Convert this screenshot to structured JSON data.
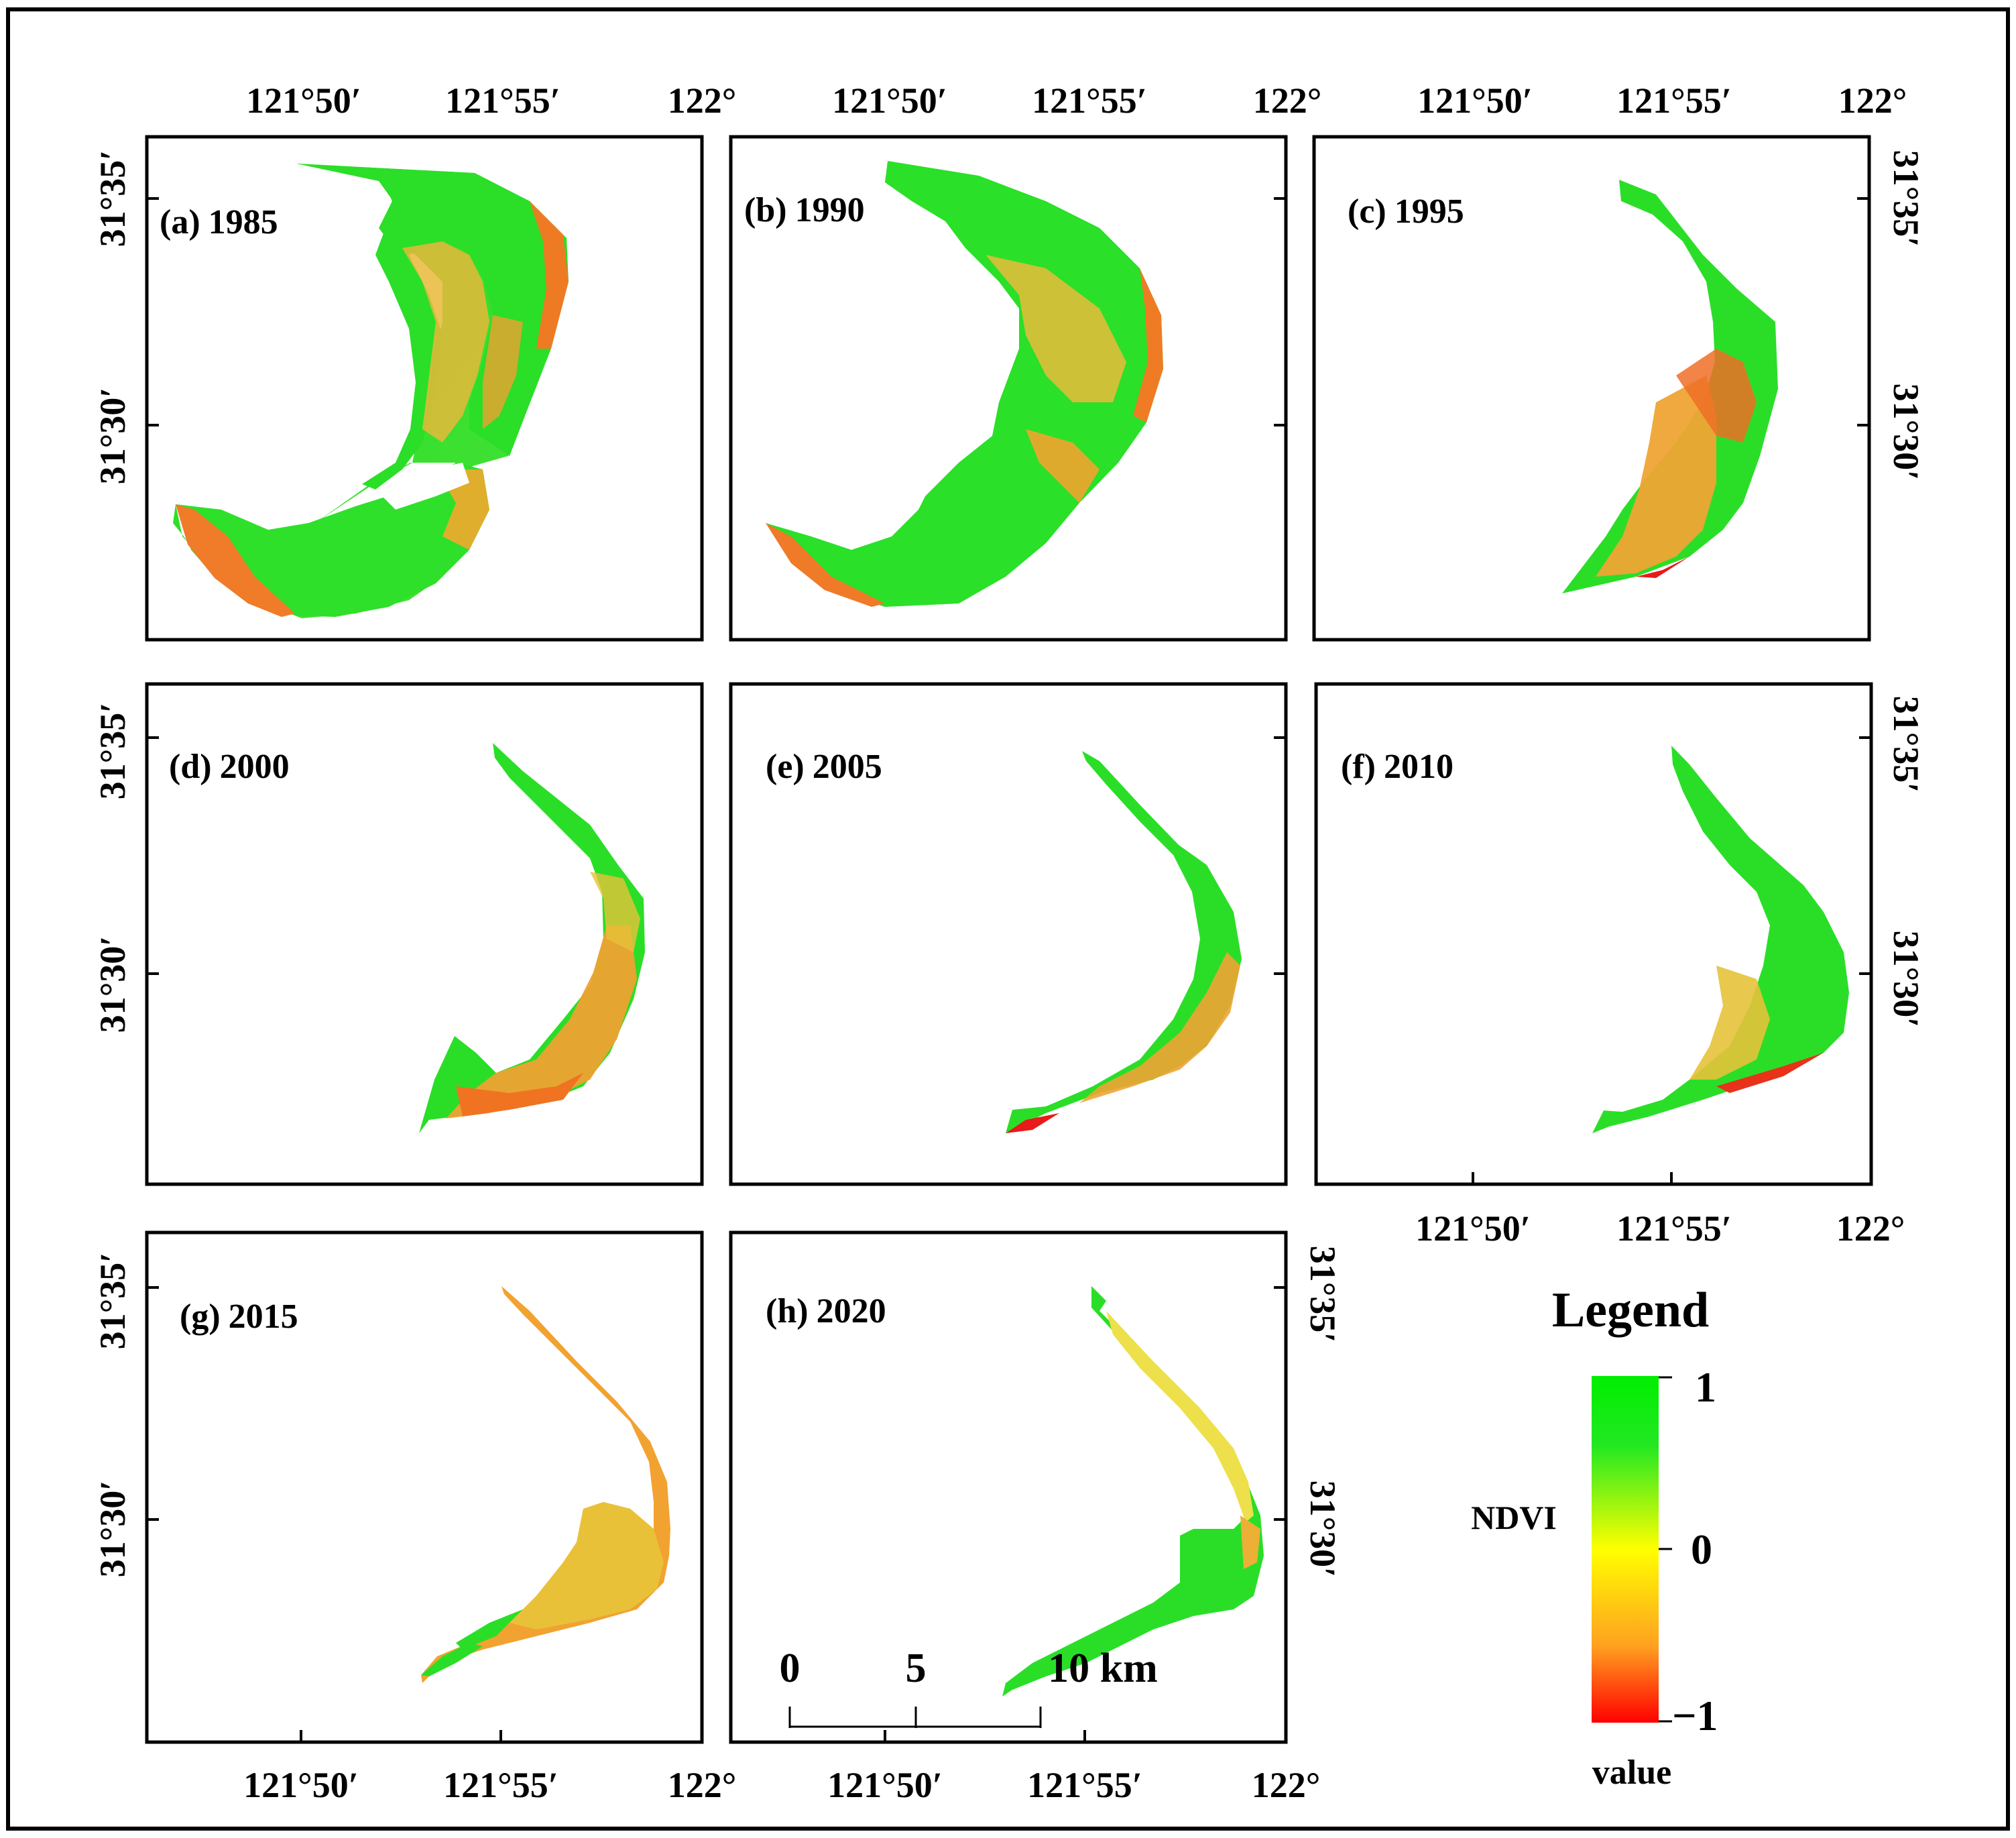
{
  "legend": {
    "title": "Legend",
    "variable": "NDVI",
    "max_label": "1",
    "mid_label": "0",
    "min_label": "−1",
    "unit_label": "value",
    "colors": {
      "high": "#00ee00",
      "mid": "#ffff00",
      "low": "#ff0000"
    }
  },
  "scale_bar": {
    "labels": [
      "0",
      "5",
      "10 km"
    ]
  },
  "axes": {
    "lon_labels": [
      "121°50′",
      "121°55′",
      "122°"
    ],
    "lat_labels": [
      "31°35′",
      "31°30′"
    ]
  },
  "panels": [
    {
      "letter": "(a)",
      "year": "1985"
    },
    {
      "letter": "(b)",
      "year": "1990"
    },
    {
      "letter": "(c)",
      "year": "1995"
    },
    {
      "letter": "(d)",
      "year": "2000"
    },
    {
      "letter": "(e)",
      "year": "2005"
    },
    {
      "letter": "(f)",
      "year": "2010"
    },
    {
      "letter": "(g)",
      "year": "2015"
    },
    {
      "letter": "(h)",
      "year": "2020"
    }
  ],
  "colors": {
    "green": "#22e022",
    "yellow": "#e8d23a",
    "orange": "#f2a22a",
    "red": "#e81818"
  }
}
